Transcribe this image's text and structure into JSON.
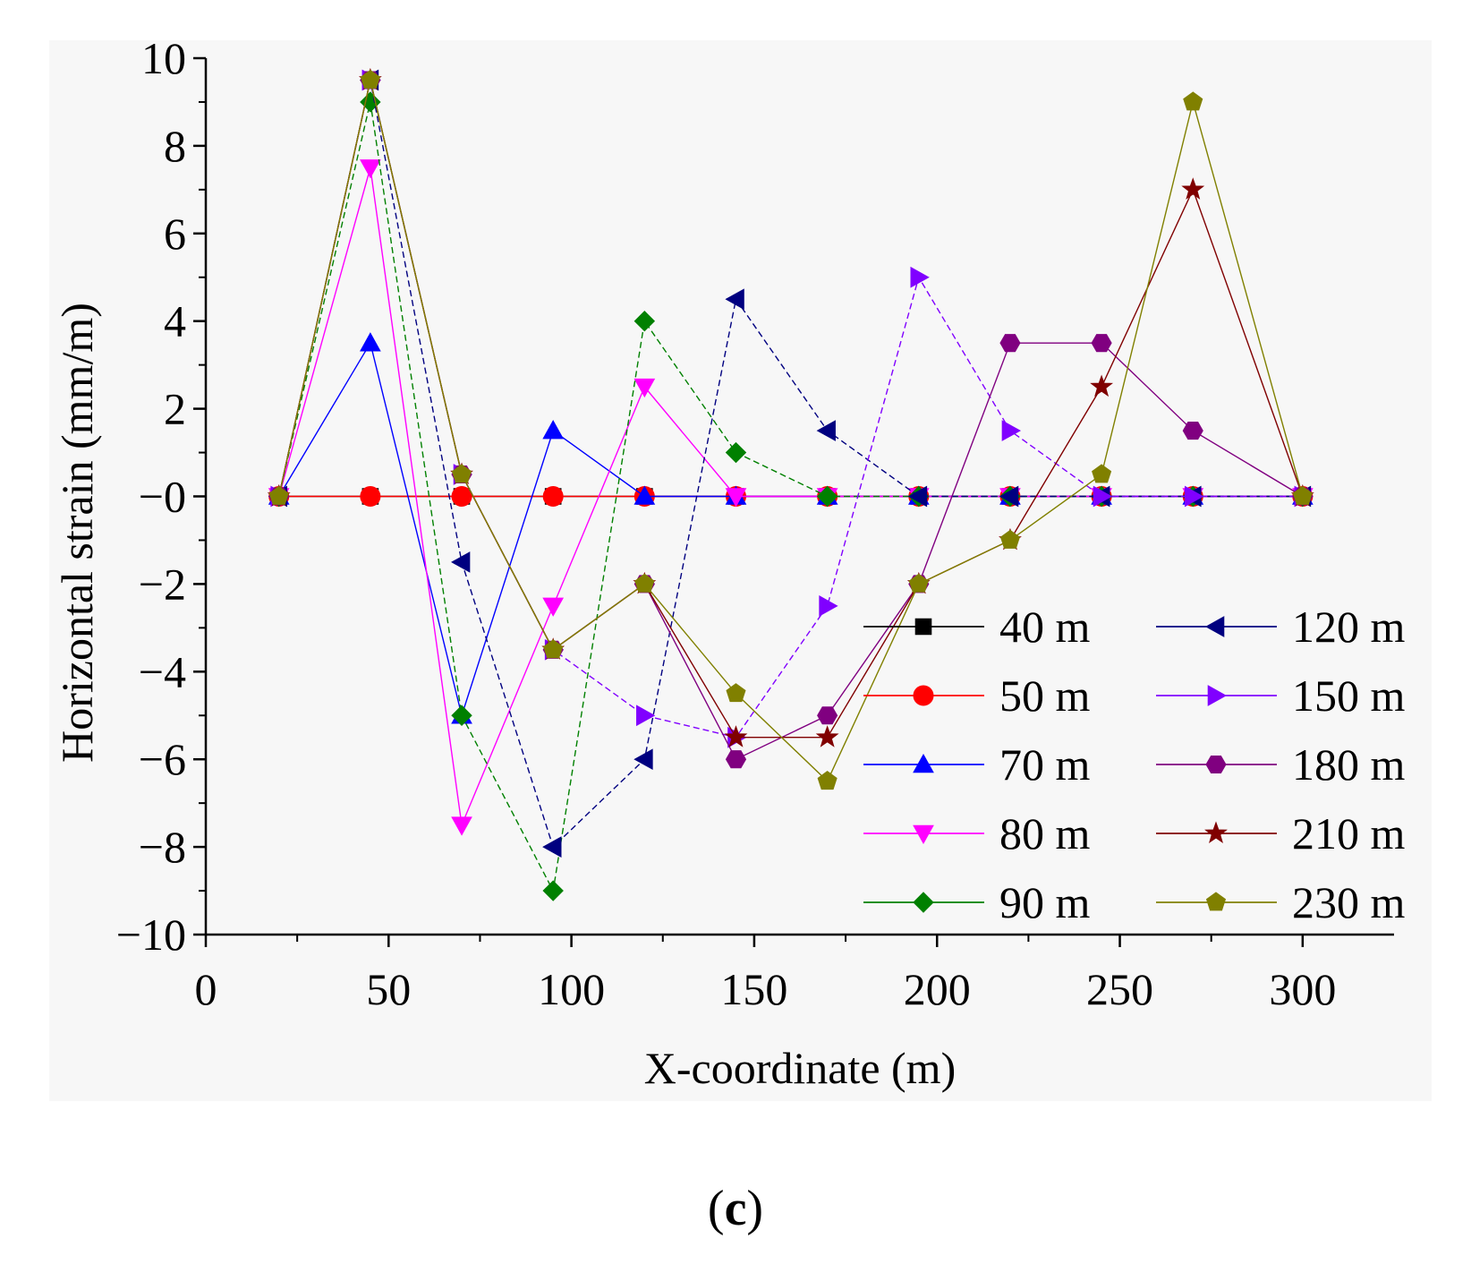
{
  "chart_data": {
    "type": "line",
    "title": "",
    "xlabel": "X-coordinate (m)",
    "ylabel": "Horizontal strain (mm/m)",
    "xlim": [
      0,
      325
    ],
    "ylim": [
      -10,
      10
    ],
    "xticks": [
      0,
      50,
      100,
      150,
      200,
      250,
      300
    ],
    "yticks": [
      10,
      8,
      6,
      4,
      2,
      0,
      -2,
      -4,
      -6,
      -8,
      -10
    ],
    "ytick_labels": [
      "10",
      "8",
      "6",
      "4",
      "2",
      "−0",
      "−2",
      "−4",
      "−6",
      "−8",
      "−10"
    ],
    "x": [
      20,
      45,
      70,
      95,
      120,
      145,
      170,
      195,
      220,
      245,
      270,
      300
    ],
    "legend_position": "bottom-right",
    "series": [
      {
        "name": "40 m",
        "color": "#000000",
        "marker": "square",
        "dash": "solid",
        "values": [
          0,
          0,
          0,
          0,
          0,
          0,
          0,
          0,
          0,
          0,
          0,
          0
        ]
      },
      {
        "name": "50 m",
        "color": "#ff0000",
        "marker": "circle",
        "dash": "solid",
        "values": [
          0,
          0,
          0,
          0,
          0,
          0,
          0,
          0,
          0,
          0,
          0,
          0
        ]
      },
      {
        "name": "70 m",
        "color": "#0000ff",
        "marker": "triangle-up",
        "dash": "solid",
        "values": [
          0,
          3.5,
          -5,
          1.5,
          0,
          0,
          0,
          0,
          0,
          0,
          0,
          0
        ]
      },
      {
        "name": "80 m",
        "color": "#ff00ff",
        "marker": "triangle-down",
        "dash": "solid",
        "values": [
          0,
          7.5,
          -7.5,
          -2.5,
          2.5,
          0,
          0,
          0,
          0,
          0,
          0,
          0
        ]
      },
      {
        "name": "90 m",
        "color": "#008000",
        "marker": "diamond",
        "dash": "dashed",
        "values": [
          0,
          9,
          -5,
          -9,
          4,
          1,
          0,
          0,
          0,
          0,
          0,
          0
        ]
      },
      {
        "name": "120 m",
        "color": "#000080",
        "marker": "triangle-left",
        "dash": "dashed",
        "values": [
          0,
          9.5,
          -1.5,
          -8,
          -6,
          4.5,
          1.5,
          0,
          0,
          0,
          0,
          0
        ]
      },
      {
        "name": "150 m",
        "color": "#8000ff",
        "marker": "triangle-right",
        "dash": "dashed",
        "values": [
          0,
          9.5,
          0.5,
          -3.5,
          -5,
          -5.5,
          -2.5,
          5,
          1.5,
          0,
          0,
          0
        ]
      },
      {
        "name": "180 m",
        "color": "#800080",
        "marker": "hexagon",
        "dash": "solid",
        "values": [
          0,
          9.5,
          0.5,
          -3.5,
          -2,
          -6,
          -5,
          -2,
          3.5,
          3.5,
          1.5,
          0
        ]
      },
      {
        "name": "210 m",
        "color": "#800000",
        "marker": "star",
        "dash": "solid",
        "values": [
          0,
          9.5,
          0.5,
          -3.5,
          -2,
          -5.5,
          -5.5,
          -2,
          -1,
          2.5,
          7,
          0
        ]
      },
      {
        "name": "230 m",
        "color": "#808000",
        "marker": "pentagon",
        "dash": "solid",
        "values": [
          0,
          9.5,
          0.5,
          -3.5,
          -2,
          -4.5,
          -6.5,
          -2,
          -1,
          0.5,
          9,
          0
        ]
      }
    ]
  },
  "caption": {
    "open": "(",
    "letter": "c",
    "close": ")"
  }
}
